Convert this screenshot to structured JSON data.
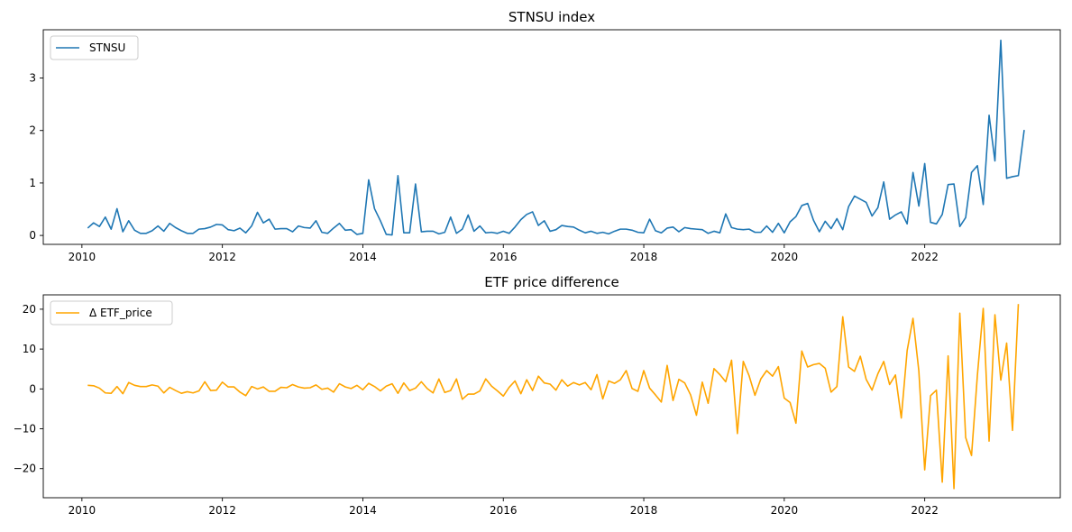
{
  "chart_data": [
    {
      "type": "line",
      "title": "STNSU index",
      "xlabel": "",
      "ylabel": "",
      "xlim": [
        2009.45,
        2023.93
      ],
      "ylim": [
        -0.17,
        3.92
      ],
      "xticks": [
        2010,
        2012,
        2014,
        2016,
        2018,
        2020,
        2022
      ],
      "yticks": [
        0,
        1,
        2,
        3
      ],
      "grid": false,
      "legend": "top-left",
      "series": [
        {
          "name": "STNSU",
          "color": "#1f77b4",
          "x_start": 2010.083,
          "x_step": 0.0833333,
          "values": [
            0.14,
            0.24,
            0.17,
            0.35,
            0.12,
            0.51,
            0.07,
            0.28,
            0.1,
            0.04,
            0.04,
            0.09,
            0.18,
            0.08,
            0.23,
            0.15,
            0.09,
            0.04,
            0.04,
            0.12,
            0.13,
            0.16,
            0.21,
            0.2,
            0.11,
            0.09,
            0.14,
            0.05,
            0.18,
            0.44,
            0.24,
            0.31,
            0.12,
            0.13,
            0.13,
            0.07,
            0.18,
            0.15,
            0.14,
            0.28,
            0.06,
            0.04,
            0.14,
            0.23,
            0.1,
            0.11,
            0.02,
            0.04,
            1.06,
            0.51,
            0.28,
            0.02,
            0.01,
            1.14,
            0.05,
            0.05,
            0.98,
            0.07,
            0.08,
            0.08,
            0.03,
            0.06,
            0.35,
            0.04,
            0.12,
            0.39,
            0.08,
            0.18,
            0.05,
            0.06,
            0.04,
            0.08,
            0.04,
            0.16,
            0.3,
            0.4,
            0.45,
            0.19,
            0.28,
            0.08,
            0.11,
            0.19,
            0.17,
            0.16,
            0.1,
            0.05,
            0.08,
            0.04,
            0.06,
            0.03,
            0.08,
            0.12,
            0.12,
            0.1,
            0.06,
            0.05,
            0.31,
            0.09,
            0.05,
            0.14,
            0.16,
            0.07,
            0.15,
            0.13,
            0.12,
            0.11,
            0.04,
            0.08,
            0.05,
            0.41,
            0.15,
            0.12,
            0.11,
            0.12,
            0.06,
            0.06,
            0.18,
            0.06,
            0.23,
            0.05,
            0.26,
            0.36,
            0.57,
            0.61,
            0.29,
            0.07,
            0.27,
            0.13,
            0.32,
            0.11,
            0.55,
            0.75,
            0.69,
            0.63,
            0.37,
            0.53,
            1.02,
            0.31,
            0.39,
            0.45,
            0.22,
            1.2,
            0.56,
            1.37,
            0.25,
            0.22,
            0.4,
            0.97,
            0.98,
            0.17,
            0.34,
            1.2,
            1.33,
            0.59,
            2.29,
            1.42,
            3.72,
            1.09,
            1.12,
            1.14,
            2.01
          ]
        }
      ]
    },
    {
      "type": "line",
      "title": "ETF price difference",
      "xlabel": "",
      "ylabel": "",
      "xlim": [
        2009.45,
        2023.93
      ],
      "ylim": [
        -27.3,
        23.6
      ],
      "xticks": [
        2010,
        2012,
        2014,
        2016,
        2018,
        2020,
        2022
      ],
      "yticks": [
        -20,
        -10,
        0,
        10,
        20
      ],
      "grid": false,
      "legend": "top-left",
      "series": [
        {
          "name": "Δ ETF_price",
          "color": "#ffa500",
          "x_start": 2010.083,
          "x_step": 0.0833333,
          "values": [
            0.9,
            0.8,
            0.2,
            -1.0,
            -1.1,
            0.6,
            -1.2,
            1.6,
            0.9,
            0.6,
            0.6,
            1.0,
            0.7,
            -1.0,
            0.4,
            -0.4,
            -1.1,
            -0.7,
            -1.0,
            -0.5,
            1.8,
            -0.4,
            -0.3,
            1.7,
            0.5,
            0.5,
            -0.8,
            -1.7,
            0.6,
            0.0,
            0.5,
            -0.6,
            -0.6,
            0.4,
            0.3,
            1.1,
            0.5,
            0.2,
            0.3,
            1.0,
            -0.1,
            0.2,
            -0.8,
            1.3,
            0.5,
            0.1,
            0.9,
            -0.2,
            1.4,
            0.6,
            -0.5,
            0.7,
            1.3,
            -1.1,
            1.5,
            -0.4,
            0.2,
            1.8,
            0.1,
            -1.0,
            2.5,
            -0.9,
            -0.4,
            2.5,
            -2.6,
            -1.3,
            -1.3,
            -0.5,
            2.5,
            0.7,
            -0.5,
            -1.8,
            0.4,
            2.0,
            -1.2,
            2.3,
            -0.4,
            3.2,
            1.5,
            1.2,
            -0.3,
            2.3,
            0.7,
            1.6,
            1.0,
            1.6,
            -0.2,
            3.6,
            -2.5,
            2.0,
            1.4,
            2.3,
            4.6,
            0.1,
            -0.6,
            4.6,
            0.2,
            -1.5,
            -3.3,
            5.9,
            -2.9,
            2.4,
            1.5,
            -1.5,
            -6.6,
            1.7,
            -3.6,
            5.1,
            3.6,
            1.8,
            7.2,
            -11.2,
            6.9,
            3.3,
            -1.6,
            2.5,
            4.6,
            3.2,
            5.6,
            -2.3,
            -3.4,
            -8.6,
            9.5,
            5.5,
            6.1,
            6.4,
            5.2,
            -0.8,
            0.6,
            18.1,
            5.5,
            4.4,
            8.2,
            2.4,
            -0.3,
            3.8,
            6.9,
            1.1,
            3.5,
            -7.3,
            9.6,
            17.7,
            4.5,
            -20.3,
            -1.7,
            -0.3,
            -23.4,
            8.3,
            -25.0,
            19.0,
            -12.2,
            -16.7,
            3.4,
            20.2,
            -13.1,
            18.6,
            2.2,
            11.5,
            -10.4,
            21.3
          ]
        }
      ]
    }
  ]
}
